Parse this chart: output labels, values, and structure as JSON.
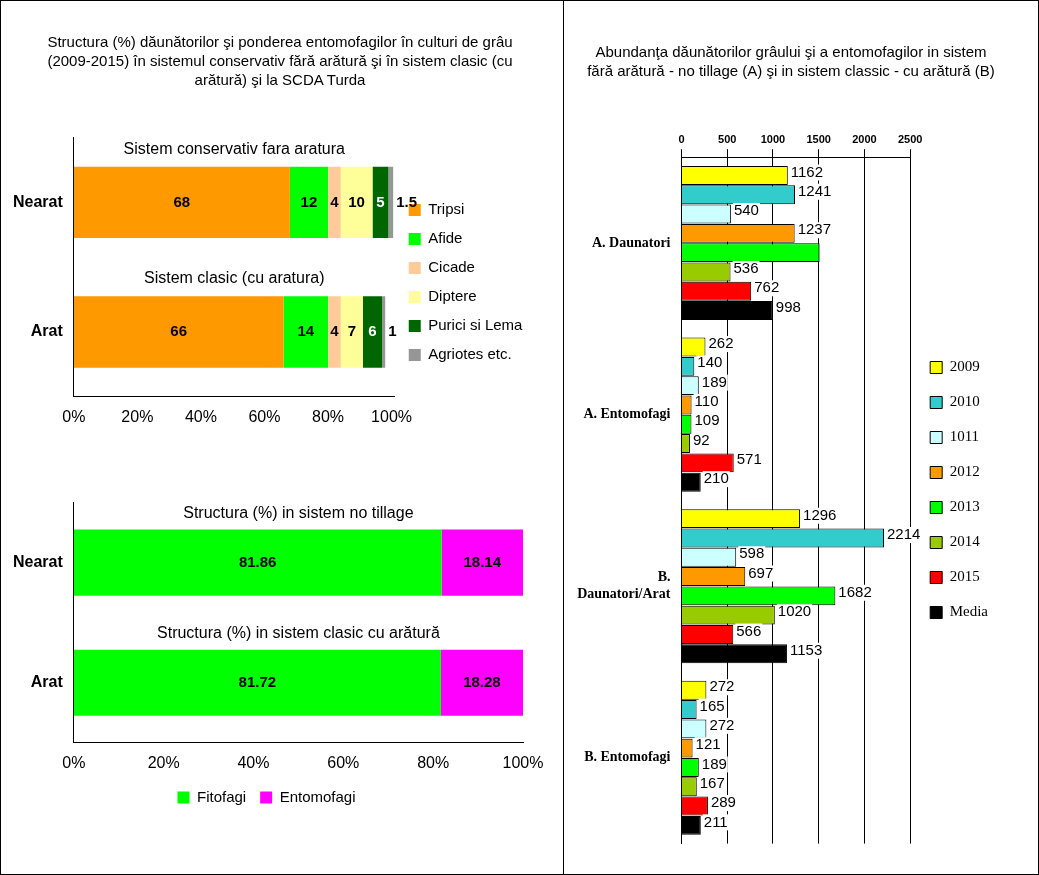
{
  "chart_data": [
    {
      "type": "bar",
      "orientation": "horizontal",
      "stacked": true,
      "title": "Structura (%) dăunătorilor şi ponderea entomofagilor în culturi de grâu (2009-2015) în sistemul conservativ  fără arătură şi în sistem clasic (cu arătură) şi la SCDA Turda",
      "categories": [
        "Nearat",
        "Arat"
      ],
      "series": [
        {
          "name": "Tripsi",
          "color": "#ff9900",
          "values": [
            68,
            66
          ]
        },
        {
          "name": "Afide",
          "color": "#00ff00",
          "values": [
            12,
            14
          ]
        },
        {
          "name": "Cicade",
          "color": "#ffcc99",
          "values": [
            4,
            4
          ]
        },
        {
          "name": "Diptere",
          "color": "#ffff99",
          "values": [
            10,
            7
          ]
        },
        {
          "name": "Purici si Lema",
          "color": "#006600",
          "values": [
            5,
            6
          ]
        },
        {
          "name": "Agriotes etc.",
          "color": "#969696",
          "values": [
            1.5,
            1
          ]
        }
      ],
      "xlim": [
        0,
        101
      ],
      "xticks": [
        {
          "value": 0,
          "label": "0%"
        },
        {
          "value": 20,
          "label": "20%"
        },
        {
          "value": 40,
          "label": "40%"
        },
        {
          "value": 60,
          "label": "60%"
        },
        {
          "value": 80,
          "label": "80%"
        },
        {
          "value": 100,
          "label": "100%"
        }
      ],
      "annotations": [
        "Sistem conservativ fara aratura",
        "Sistem clasic (cu aratura)"
      ],
      "data_labels": true,
      "legend": "right",
      "grid": false
    },
    {
      "type": "bar",
      "orientation": "horizontal",
      "stacked": true,
      "categories": [
        "Nearat",
        "Arat"
      ],
      "series": [
        {
          "name": "Fitofagi",
          "color": "#00ff00",
          "values": [
            81.86,
            81.72
          ]
        },
        {
          "name": "Entomofagi",
          "color": "#ff00ff",
          "values": [
            18.14,
            18.28
          ]
        }
      ],
      "xlim": [
        0,
        100
      ],
      "xticks": [
        {
          "value": 0,
          "label": "0%"
        },
        {
          "value": 20,
          "label": "20%"
        },
        {
          "value": 40,
          "label": "40%"
        },
        {
          "value": 60,
          "label": "60%"
        },
        {
          "value": 80,
          "label": "80%"
        },
        {
          "value": 100,
          "label": "100%"
        }
      ],
      "annotations": [
        "Structura (%) in sistem no tillage",
        "Structura (%) in sistem clasic cu arătură"
      ],
      "data_labels": true,
      "legend": "bottom",
      "grid": false
    },
    {
      "type": "bar",
      "orientation": "horizontal",
      "title": "Abundanţa dăunătorilor grâului şi a entomofagilor in sistem fără arătură - no tillage (A) şi in sistem classic - cu arătură (B)",
      "categories": [
        "A. Daunatori",
        "A. Entomofagi",
        "B. Daunatori/Arat",
        "B. Entomofagi"
      ],
      "series": [
        {
          "name": "2009",
          "color": "#ffff00",
          "values": [
            1162,
            262,
            1296,
            272
          ],
          "value_labels": [
            "1162",
            "262",
            "1296",
            "272"
          ]
        },
        {
          "name": "2010",
          "color": "#33cccc",
          "values": [
            1241,
            140,
            2214,
            165
          ],
          "value_labels": [
            "1241",
            "140",
            "2214",
            "165"
          ]
        },
        {
          "name": "1011",
          "color": "#ccffff",
          "values": [
            540,
            189,
            598,
            272
          ],
          "value_labels": [
            "540",
            "189",
            "598",
            "272"
          ]
        },
        {
          "name": "2012",
          "color": "#ff9900",
          "values": [
            1237,
            110,
            697,
            121
          ],
          "value_labels": [
            "1237",
            "110",
            "697",
            "121"
          ]
        },
        {
          "name": "2013",
          "color": "#00ff00",
          "values": [
            1510,
            109,
            1682,
            189
          ],
          "value_labels": [
            null,
            "109",
            "1682",
            "189"
          ]
        },
        {
          "name": "2014",
          "color": "#99cc00",
          "values": [
            536,
            92,
            1020,
            167
          ],
          "value_labels": [
            "536",
            "92",
            "1020",
            "167"
          ]
        },
        {
          "name": "2015",
          "color": "#ff0000",
          "values": [
            762,
            571,
            566,
            289
          ],
          "value_labels": [
            "762",
            "571",
            "566",
            "289"
          ]
        },
        {
          "name": "Media",
          "color": "#000000",
          "values": [
            998,
            210,
            1153,
            211
          ],
          "value_labels": [
            "998",
            "210",
            "1153",
            "211"
          ]
        }
      ],
      "xlim": [
        0,
        2500
      ],
      "xticks": [
        0,
        500,
        1000,
        1500,
        2000,
        2500
      ],
      "legend": "right",
      "grid": "x"
    }
  ]
}
